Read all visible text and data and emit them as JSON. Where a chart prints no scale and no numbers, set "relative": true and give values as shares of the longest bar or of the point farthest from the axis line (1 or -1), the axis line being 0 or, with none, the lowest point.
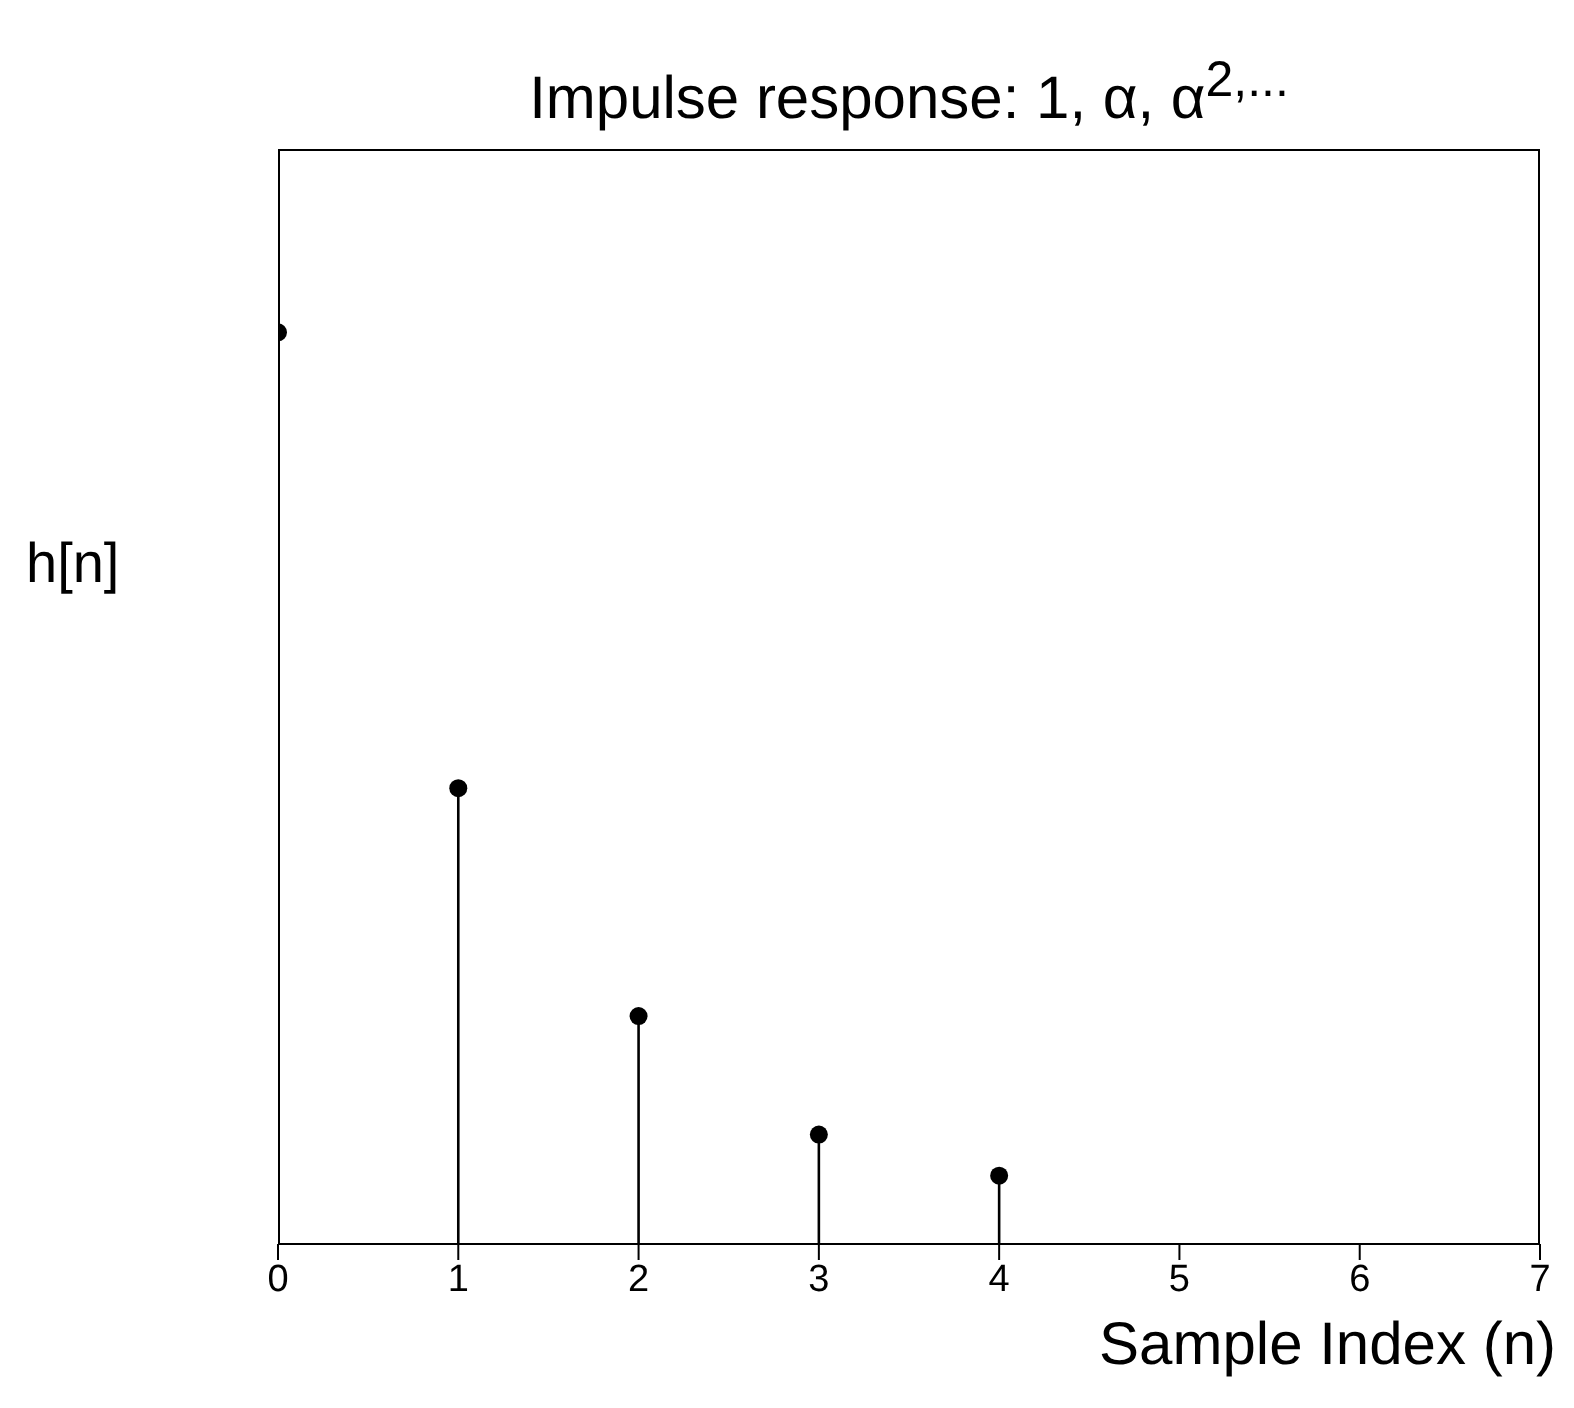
{
  "chart_data": {
    "type": "lollipop",
    "title": "Impulse response: 1, α, α$^{2,...}$",
    "xlabel": "Sample Index (n)",
    "ylabel": "h[n]",
    "x": [
      0,
      1,
      2,
      3,
      4
    ],
    "values": [
      1,
      0.5,
      0.25,
      0.12,
      0.075
    ],
    "color": "#000000",
    "relative": true,
    "marker": "circle",
    "tick_labels": "x",
    "xlim": [
      0,
      7
    ],
    "xticks": [
      0,
      1,
      2,
      3,
      4,
      5,
      6,
      7
    ]
  }
}
